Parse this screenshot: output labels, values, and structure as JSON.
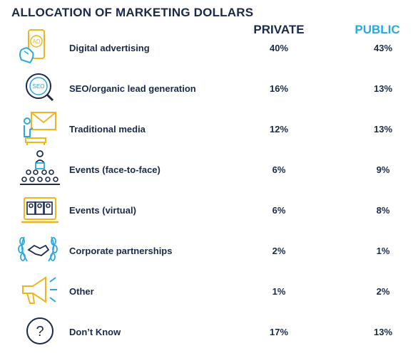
{
  "title": "ALLOCATION OF MARKETING DOLLARS",
  "colors": {
    "navy": "#1b2a4a",
    "accent_blue": "#29a9e0",
    "icon_gold": "#f2b51c"
  },
  "chart_data": {
    "type": "table",
    "title": "ALLOCATION OF MARKETING DOLLARS",
    "columns": [
      "PRIVATE",
      "PUBLIC"
    ],
    "rows": [
      {
        "label": "Digital advertising",
        "icon": "smartphone-ad-icon",
        "private": "40%",
        "public": "43%"
      },
      {
        "label": "SEO/organic lead generation",
        "icon": "seo-magnifier-icon",
        "private": "16%",
        "public": "13%"
      },
      {
        "label": "Traditional media",
        "icon": "envelope-mail-icon",
        "private": "12%",
        "public": "13%"
      },
      {
        "label": "Events (face-to-face)",
        "icon": "audience-presenter-icon",
        "private": "6%",
        "public": "9%"
      },
      {
        "label": "Events (virtual)",
        "icon": "video-conference-icon",
        "private": "6%",
        "public": "8%"
      },
      {
        "label": "Corporate partnerships",
        "icon": "handshake-laurel-icon",
        "private": "2%",
        "public": "1%"
      },
      {
        "label": "Other",
        "icon": "megaphone-icon",
        "private": "1%",
        "public": "2%"
      },
      {
        "label": "Don’t Know",
        "icon": "question-circle-icon",
        "private": "17%",
        "public": "13%"
      }
    ]
  }
}
